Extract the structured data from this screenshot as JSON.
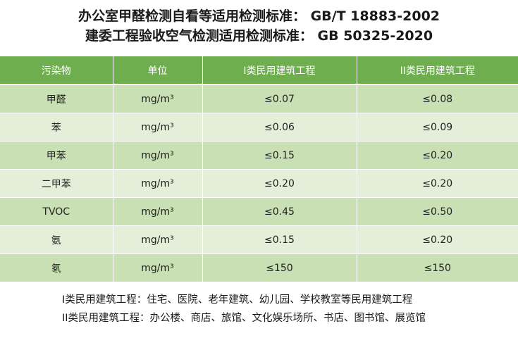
{
  "title": {
    "line1": "办公室甲醛检测自看等适用检测标准： GB/T 18883-2002",
    "line2": "建委工程验收空气检测适用检测标准： GB 50325-2020"
  },
  "table": {
    "headers": [
      "污染物",
      "单位",
      "I类民用建筑工程",
      "II类民用建筑工程"
    ],
    "rows": [
      [
        "甲醛",
        "mg/m³",
        "≤0.07",
        "≤0.08"
      ],
      [
        "苯",
        "mg/m³",
        "≤0.06",
        "≤0.09"
      ],
      [
        "甲苯",
        "mg/m³",
        "≤0.15",
        "≤0.20"
      ],
      [
        "二甲苯",
        "mg/m³",
        "≤0.20",
        "≤0.20"
      ],
      [
        "TVOC",
        "mg/m³",
        "≤0.45",
        "≤0.50"
      ],
      [
        "氨",
        "mg/m³",
        "≤0.15",
        "≤0.20"
      ],
      [
        "氡",
        "mg/m³",
        "≤150",
        "≤150"
      ]
    ]
  },
  "notes": {
    "line1": "I类民用建筑工程：住宅、医院、老年建筑、幼儿园、学校教室等民用建筑工程",
    "line2": "II类民用建筑工程：办公楼、商店、旅馆、文化娱乐场所、书店、图书馆、展览馆"
  },
  "colors": {
    "header_bg": "#6fae4e",
    "row_dark": "#c8e0b4",
    "row_light": "#e3efd9"
  }
}
